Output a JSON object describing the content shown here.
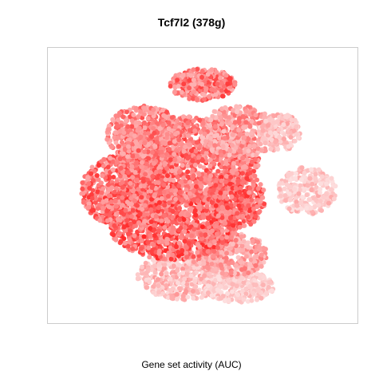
{
  "chart_data": {
    "type": "scatter",
    "title": "Tcf7l2 (378g)",
    "xlabel": "Gene set activity (AUC)",
    "ylabel": "",
    "xlim": [
      0,
      100
    ],
    "ylim": [
      0,
      100
    ],
    "grid": false,
    "legend": "none",
    "color_low": "#fde4e4",
    "color_high": "#ff1a1a",
    "point_color_mapping": "gene set activity (AUC)",
    "clusters": [
      {
        "cx": 44,
        "cy": 84,
        "rx": 16,
        "ry": 9,
        "n": 520,
        "activity": [
          0.05,
          0.4
        ]
      },
      {
        "cx": 62,
        "cy": 88,
        "rx": 12,
        "ry": 6,
        "n": 300,
        "activity": [
          0.02,
          0.25
        ]
      },
      {
        "cx": 60,
        "cy": 76,
        "rx": 12,
        "ry": 8,
        "n": 320,
        "activity": [
          0.15,
          0.55
        ]
      },
      {
        "cx": 40,
        "cy": 64,
        "rx": 22,
        "ry": 14,
        "n": 1100,
        "activity": [
          0.35,
          0.95
        ]
      },
      {
        "cx": 25,
        "cy": 52,
        "rx": 16,
        "ry": 14,
        "n": 800,
        "activity": [
          0.3,
          0.9
        ]
      },
      {
        "cx": 45,
        "cy": 40,
        "rx": 24,
        "ry": 16,
        "n": 1300,
        "activity": [
          0.3,
          0.85
        ]
      },
      {
        "cx": 30,
        "cy": 30,
        "rx": 13,
        "ry": 10,
        "n": 450,
        "activity": [
          0.25,
          0.75
        ]
      },
      {
        "cx": 62,
        "cy": 30,
        "rx": 13,
        "ry": 10,
        "n": 420,
        "activity": [
          0.15,
          0.6
        ]
      },
      {
        "cx": 62,
        "cy": 55,
        "rx": 9,
        "ry": 11,
        "n": 400,
        "activity": [
          0.35,
          0.9
        ]
      },
      {
        "cx": 85,
        "cy": 52,
        "rx": 10,
        "ry": 9,
        "n": 260,
        "activity": [
          0.02,
          0.3
        ]
      },
      {
        "cx": 76,
        "cy": 30,
        "rx": 7,
        "ry": 7,
        "n": 180,
        "activity": [
          0.05,
          0.35
        ]
      },
      {
        "cx": 50,
        "cy": 12,
        "rx": 11,
        "ry": 6,
        "n": 320,
        "activity": [
          0.25,
          0.85
        ]
      }
    ]
  }
}
